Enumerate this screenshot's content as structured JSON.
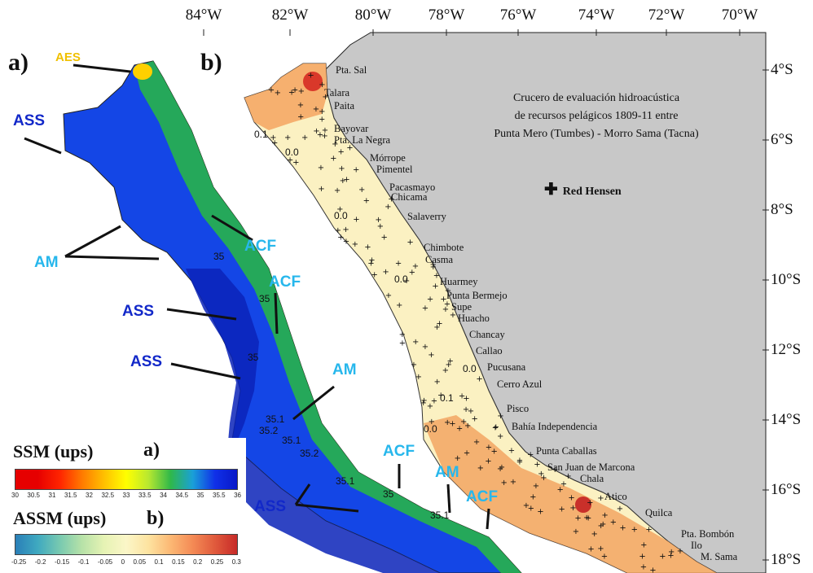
{
  "lon_labels": [
    "84°W",
    "82°W",
    "80°W",
    "78°W",
    "76°W",
    "74°W",
    "72°W",
    "70°W"
  ],
  "lat_labels": [
    "4°S",
    "6°S",
    "8°S",
    "10°S",
    "12°S",
    "14°S",
    "16°S",
    "18°S"
  ],
  "panel_a": {
    "letter": "a)"
  },
  "panel_b": {
    "letter": "b)"
  },
  "water_masses": {
    "aes": "AES",
    "ass": "ASS",
    "am": "AM",
    "acf": "ACF"
  },
  "contour_labels_a": [
    "35",
    "35",
    "35",
    "35.1",
    "35.2",
    "35.1",
    "35.2",
    "35.1",
    "35",
    "35.1"
  ],
  "contour_labels_b": [
    "0.1",
    "0.0",
    "0.0",
    "0.0",
    "0.0",
    "0.1",
    "0.0"
  ],
  "places": [
    "Pta. Sal",
    "Talara",
    "Paita",
    "Bayovar",
    "Pta. La Negra",
    "Mórrope",
    "Pimentel",
    "Pacasmayo",
    "Chicama",
    "Salaverry",
    "Chimbote",
    "Casma",
    "Huarmey",
    "Punta Bermejo",
    "Supe",
    "Huacho",
    "Chancay",
    "Callao",
    "Pucusana",
    "Cerro Azul",
    "Pisco",
    "Bahía Independencia",
    "Punta Caballas",
    "San Juan de Marcona",
    "Chala",
    "Atico",
    "Quilca",
    "Pta. Bombón",
    "Ilo",
    "M. Sama"
  ],
  "cruise_title": [
    "Crucero de evaluación hidroacústica",
    "de recursos pelágicos 1809-11 entre",
    "Punta Mero (Tumbes) - Morro Sama (Tacna)"
  ],
  "station_legend": "Red Hensen",
  "legend_ssm": {
    "title": "SSM (ups)",
    "letter": "a)",
    "ticks": [
      "30",
      "30.5",
      "31",
      "31.5",
      "32",
      "32.5",
      "33",
      "33.5",
      "34",
      "34.5",
      "35",
      "35.5",
      "36"
    ],
    "colors": [
      "#e60000",
      "#e60000",
      "#ff2400",
      "#ff7a00",
      "#ffc000",
      "#ffff00",
      "#b8e830",
      "#2fb84a",
      "#1aa0d8",
      "#1030e8",
      "#0818c8"
    ]
  },
  "legend_assm": {
    "title": "ASSM (ups)",
    "letter": "b)",
    "ticks": [
      "-0.25",
      "-0.2",
      "-0.15",
      "-0.1",
      "-0.05",
      "0",
      "0.05",
      "0.1",
      "0.15",
      "0.2",
      "0.25",
      "0.3"
    ],
    "colors": [
      "#2a7fb8",
      "#3fa9c0",
      "#78c9b0",
      "#b7e2a8",
      "#e6f3b4",
      "#fbf6c8",
      "#fde3a0",
      "#fcb874",
      "#f48a55",
      "#e05a3c",
      "#c72a28"
    ]
  }
}
